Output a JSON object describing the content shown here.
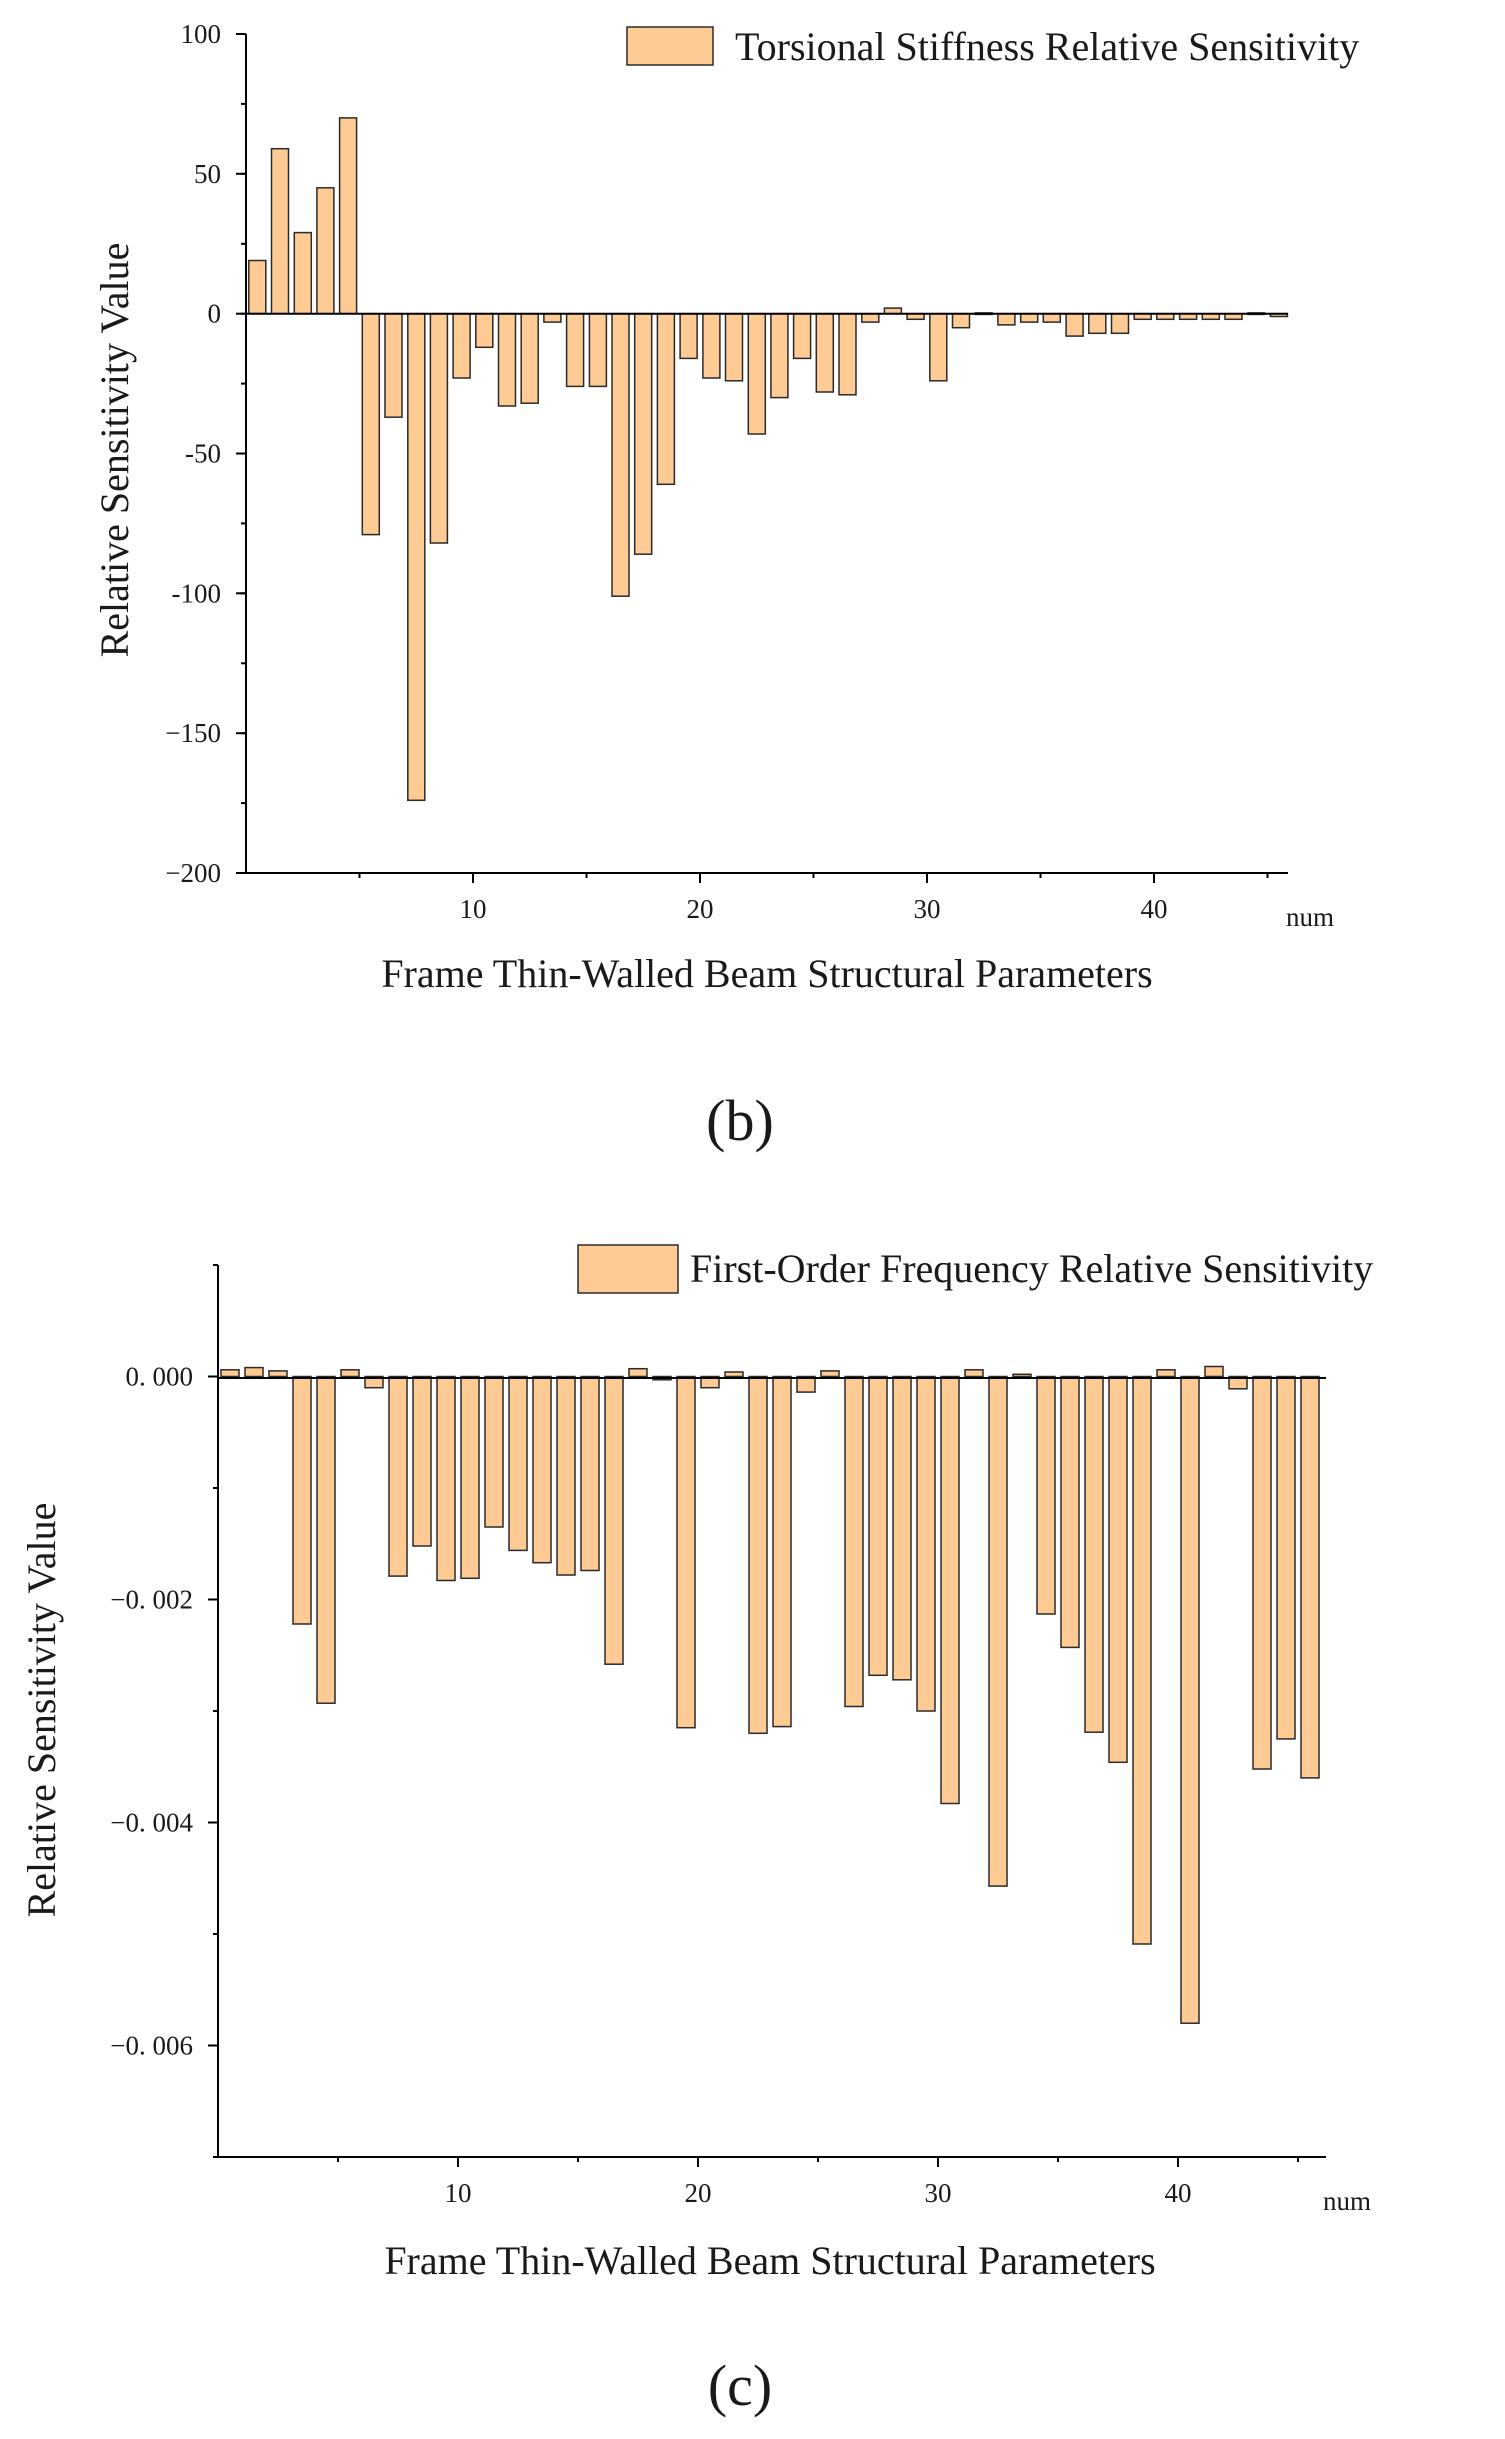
{
  "figure": {
    "panels": [
      {
        "caption": "(b)"
      },
      {
        "caption": "(c)"
      }
    ]
  },
  "chart_data": [
    {
      "type": "bar",
      "title": "",
      "legend": {
        "label": "Torsional Stiffness Relative Sensitivity",
        "position": "top-right"
      },
      "xlabel": "Frame Thin-Walled Beam Structural Parameters",
      "x_unit_label": "num",
      "ylabel": "Relative Sensitivity Value",
      "xlim": [
        0.5,
        46.5
      ],
      "ylim": [
        -200,
        100
      ],
      "xticks": [
        10,
        20,
        30,
        40
      ],
      "xtick_labels": [
        "10",
        "20",
        "30",
        "40"
      ],
      "yticks": [
        100,
        50,
        0,
        -50,
        -100,
        -150,
        -200
      ],
      "ytick_labels": [
        "100",
        "50",
        "0",
        "-50",
        "-100",
        "−150",
        "−200"
      ],
      "grid": false,
      "bar_color": "#FDCB93",
      "edge_color": "#2a2a2a",
      "categories": [
        1,
        2,
        3,
        4,
        5,
        6,
        7,
        8,
        9,
        10,
        11,
        12,
        13,
        14,
        15,
        16,
        17,
        18,
        19,
        20,
        21,
        22,
        23,
        24,
        25,
        26,
        27,
        28,
        29,
        30,
        31,
        32,
        33,
        34,
        35,
        36,
        37,
        38,
        39,
        40,
        41,
        42,
        43,
        44,
        45,
        46
      ],
      "values": [
        19,
        59,
        29,
        45,
        70,
        -79,
        -37,
        -174,
        -82,
        -23,
        -12,
        -33,
        -32,
        -3,
        -26,
        -26,
        -101,
        -86,
        -61,
        -16,
        -23,
        -24,
        -43,
        -30,
        -16,
        -28,
        -29,
        -3,
        2,
        -2,
        -24,
        -5,
        0,
        -4,
        -3,
        -3,
        -8,
        -7,
        -7,
        -2,
        -2,
        -2,
        -2,
        -2,
        0,
        -1
      ]
    },
    {
      "type": "bar",
      "title": "",
      "legend": {
        "label": "First-Order Frequency Relative Sensitivity",
        "position": "top-right"
      },
      "xlabel": "Frame Thin-Walled Beam Structural Parameters",
      "x_unit_label": "num",
      "ylabel": "Relative Sensitivity Value",
      "xlim": [
        0.5,
        46.5
      ],
      "ylim": [
        -0.007,
        0.001
      ],
      "xticks": [
        10,
        20,
        30,
        40
      ],
      "xtick_labels": [
        "10",
        "20",
        "30",
        "40"
      ],
      "yticks": [
        0,
        -0.002,
        -0.004,
        -0.006
      ],
      "ytick_labels": [
        "0. 000",
        "−0. 002",
        "−0. 004",
        "−0. 006"
      ],
      "grid": false,
      "bar_color": "#FDCB93",
      "edge_color": "#2a2a2a",
      "categories": [
        1,
        2,
        3,
        4,
        5,
        6,
        7,
        8,
        9,
        10,
        11,
        12,
        13,
        14,
        15,
        16,
        17,
        18,
        19,
        20,
        21,
        22,
        23,
        24,
        25,
        26,
        27,
        28,
        29,
        30,
        31,
        32,
        33,
        34,
        35,
        36,
        37,
        38,
        39,
        40,
        41,
        42,
        43,
        44,
        45,
        46
      ],
      "values": [
        6e-05,
        8e-05,
        5e-05,
        -0.00222,
        -0.00293,
        6e-05,
        -0.0001,
        -0.00179,
        -0.00152,
        -0.00183,
        -0.00181,
        -0.00135,
        -0.00156,
        -0.00167,
        -0.00178,
        -0.00174,
        -0.00258,
        7e-05,
        -3e-05,
        -0.00315,
        -0.0001,
        4e-05,
        -0.0032,
        -0.00314,
        -0.00014,
        5e-05,
        -0.00296,
        -0.00268,
        -0.00272,
        -0.003,
        -0.00383,
        6e-05,
        -0.00457,
        2e-05,
        -0.00213,
        -0.00243,
        -0.00319,
        -0.00346,
        -0.00509,
        6e-05,
        -0.0058,
        9e-05,
        -0.00011,
        -0.00352,
        -0.00325,
        -0.0036
      ]
    }
  ]
}
